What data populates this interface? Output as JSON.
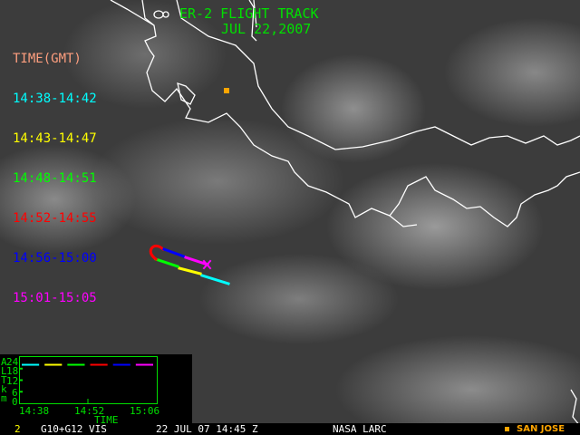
{
  "title": "ER-2 FLIGHT TRACK",
  "date": "JUL 22,2007",
  "legend": {
    "heading": "TIME(GMT)",
    "heading_color": "#ff9f7f",
    "items": [
      {
        "label": "14:38-14:42",
        "color": "#00ffff"
      },
      {
        "label": "14:43-14:47",
        "color": "#ffff00"
      },
      {
        "label": "14:48-14:51",
        "color": "#00ff00"
      },
      {
        "label": "14:52-14:55",
        "color": "#ff0000"
      },
      {
        "label": "14:56-15:00",
        "color": "#0000ff"
      },
      {
        "label": "15:01-15:05",
        "color": "#ff00ff"
      }
    ]
  },
  "altitude_plot": {
    "ylabel_letters": [
      "A",
      "L",
      "T",
      "k",
      "m"
    ],
    "yticks": [
      "24",
      "18",
      "12",
      "6",
      "0"
    ],
    "xticks": [
      "14:38",
      "14:52",
      "15:06"
    ],
    "xlabel": "TIME",
    "altitude_km": 20,
    "axis_color": "#00e000"
  },
  "marker": {
    "label": "SAN JOSE",
    "color": "#ffa500"
  },
  "status": {
    "frame": "2",
    "satellite": "G10+G12 VIS",
    "timestamp": "22 JUL 07 14:45 Z",
    "source": "NASA LARC"
  }
}
